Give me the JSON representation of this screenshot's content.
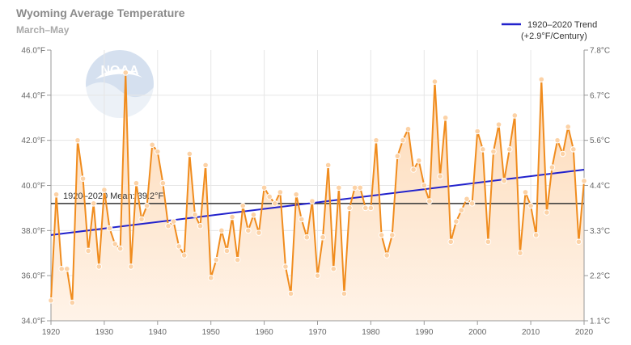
{
  "chart_data": {
    "type": "area",
    "title": "Wyoming Average Temperature",
    "subtitle": "March–May",
    "x_ticks": [
      "1920",
      "1930",
      "1940",
      "1950",
      "1960",
      "1970",
      "1980",
      "1990",
      "2000",
      "2010",
      "2020"
    ],
    "y_left_ticks": [
      "34.0°F",
      "36.0°F",
      "38.0°F",
      "40.0°F",
      "42.0°F",
      "44.0°F",
      "46.0°F"
    ],
    "y_right_ticks": [
      "1.1°C",
      "2.2°C",
      "3.3°C",
      "4.4°C",
      "5.6°C",
      "6.7°C",
      "7.8°C"
    ],
    "xlim": [
      1920,
      2020
    ],
    "ylim": [
      34,
      46
    ],
    "years": [
      1920,
      1921,
      1922,
      1923,
      1924,
      1925,
      1926,
      1927,
      1928,
      1929,
      1930,
      1931,
      1932,
      1933,
      1934,
      1935,
      1936,
      1937,
      1938,
      1939,
      1940,
      1941,
      1942,
      1943,
      1944,
      1945,
      1946,
      1947,
      1948,
      1949,
      1950,
      1951,
      1952,
      1953,
      1954,
      1955,
      1956,
      1957,
      1958,
      1959,
      1960,
      1961,
      1962,
      1963,
      1964,
      1965,
      1966,
      1967,
      1968,
      1969,
      1970,
      1971,
      1972,
      1973,
      1974,
      1975,
      1976,
      1977,
      1978,
      1979,
      1980,
      1981,
      1982,
      1983,
      1984,
      1985,
      1986,
      1987,
      1988,
      1989,
      1990,
      1991,
      1992,
      1993,
      1994,
      1995,
      1996,
      1997,
      1998,
      1999,
      2000,
      2001,
      2002,
      2003,
      2004,
      2005,
      2006,
      2007,
      2008,
      2009,
      2010,
      2011,
      2012,
      2013,
      2014,
      2015,
      2016,
      2017,
      2018,
      2019,
      2020
    ],
    "series": [
      {
        "values": [
          34.9,
          39.6,
          36.3,
          36.3,
          34.8,
          42.0,
          40.3,
          37.1,
          39.2,
          36.4,
          39.8,
          38.1,
          37.4,
          37.2,
          45.0,
          36.4,
          40.1,
          38.5,
          39.1,
          41.8,
          41.5,
          40.1,
          38.2,
          38.4,
          37.3,
          36.9,
          41.4,
          38.7,
          38.2,
          40.9,
          35.9,
          36.7,
          38.0,
          37.1,
          38.6,
          36.7,
          39.1,
          38.0,
          38.7,
          37.9,
          39.9,
          39.5,
          39.2,
          39.7,
          36.4,
          35.2,
          39.6,
          38.5,
          37.7,
          39.3,
          36.0,
          37.7,
          40.9,
          36.3,
          39.9,
          35.2,
          39.0,
          39.9,
          39.9,
          39.0,
          39.0,
          42.0,
          37.8,
          36.9,
          37.8,
          41.3,
          42.0,
          42.5,
          40.7,
          41.1,
          40.0,
          39.3,
          44.6,
          40.4,
          43.0,
          37.5,
          38.4,
          38.9,
          39.4,
          39.2,
          42.4,
          41.6,
          37.5,
          41.5,
          42.7,
          40.2,
          41.6,
          43.1,
          37.0,
          39.7,
          39.1,
          37.8,
          44.7,
          38.8,
          40.8,
          42.0,
          41.4,
          42.6,
          41.6,
          37.5,
          40.2
        ]
      }
    ],
    "mean": 39.2,
    "mean_label": "1920–2020 Mean: 39.2°F",
    "trend": {
      "start": [
        1920,
        37.8
      ],
      "end": [
        2020,
        40.7
      ],
      "legend_line1": "1920–2020 Trend",
      "legend_line2": "(+2.9°F/Century)"
    },
    "colors": {
      "line": "#f08c1e",
      "area_top": "#fdd9b5",
      "area_bottom": "#fff3e8",
      "marker_fill": "#fcd2a6",
      "trend": "#2222cc",
      "mean": "#333333",
      "grid": "#e6e6e6",
      "axis": "#999999"
    },
    "grid": true,
    "legend_position": "top-right",
    "logo": "noaa-logo"
  }
}
